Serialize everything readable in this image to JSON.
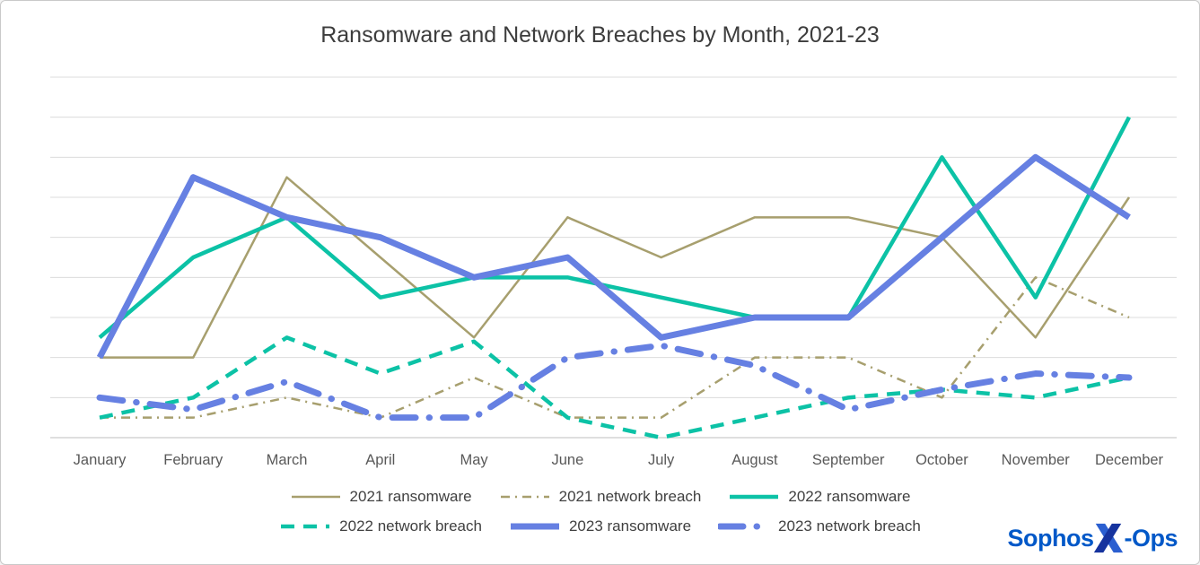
{
  "title": "Ransomware and Network Breaches by Month, 2021-23",
  "chart_data": {
    "type": "line",
    "x": [
      "January",
      "February",
      "March",
      "April",
      "May",
      "June",
      "July",
      "August",
      "September",
      "October",
      "November",
      "December"
    ],
    "ylim": [
      0,
      9
    ],
    "y_axis_labels_visible": false,
    "grid": true,
    "legend_position": "bottom",
    "series": [
      {
        "name": "2021 ransomware",
        "color": "#a79f6e",
        "line_style": "solid",
        "thickness": "thin",
        "values": [
          2,
          2,
          6.5,
          4.5,
          2.5,
          5.5,
          4.5,
          5.5,
          5.5,
          5,
          2.5,
          6
        ]
      },
      {
        "name": "2021 network breach",
        "color": "#a79f6e",
        "line_style": "dash-dot",
        "thickness": "thin",
        "values": [
          0.5,
          0.5,
          1,
          0.5,
          1.5,
          0.5,
          0.5,
          2,
          2,
          1,
          4,
          3
        ]
      },
      {
        "name": "2022 ransomware",
        "color": "#0cc2a6",
        "line_style": "solid",
        "thickness": "medium",
        "values": [
          2.5,
          4.5,
          5.5,
          3.5,
          4,
          4,
          3.5,
          3,
          3,
          7,
          3.5,
          8
        ]
      },
      {
        "name": "2022 network breach",
        "color": "#0cc2a6",
        "line_style": "dashed",
        "thickness": "medium",
        "values": [
          0.5,
          1,
          2.5,
          1.6,
          2.4,
          0.5,
          0,
          0.5,
          1,
          1.2,
          1,
          1.5
        ]
      },
      {
        "name": "2023 ransomware",
        "color": "#6680e2",
        "line_style": "solid",
        "thickness": "thick",
        "values": [
          2,
          6.5,
          5.5,
          5,
          4,
          4.5,
          2.5,
          3,
          3,
          5,
          7,
          5.5
        ]
      },
      {
        "name": "2023 network breach",
        "color": "#6680e2",
        "line_style": "long-dash-dot",
        "thickness": "thick",
        "values": [
          1,
          0.7,
          1.4,
          0.5,
          0.5,
          2,
          2.3,
          1.8,
          0.7,
          1.2,
          1.6,
          1.5
        ]
      }
    ]
  },
  "logo": {
    "brand": "Sophos",
    "x_letter": "X",
    "suffix": "-Ops",
    "color": "#0058c8"
  },
  "colors": {
    "grid": "#dcdcdc",
    "axis_line": "#bfbfbf",
    "title": "#3d3d3d",
    "axis_text": "#595959",
    "background": "#ffffff",
    "border": "#c9c9c9"
  }
}
